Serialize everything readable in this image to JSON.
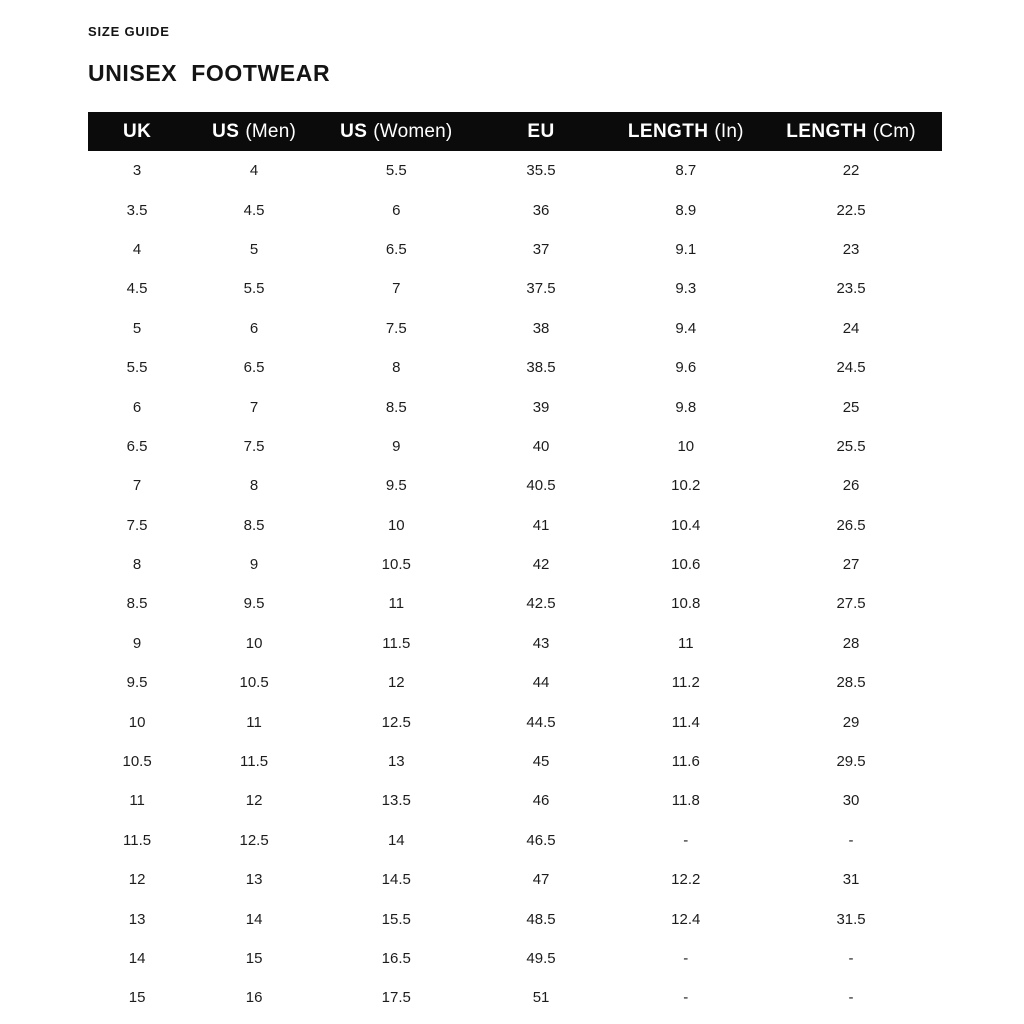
{
  "page": {
    "eyebrow": "SIZE GUIDE",
    "title": "UNISEX  FOOTWEAR"
  },
  "colors": {
    "background": "#ffffff",
    "header_bg": "#0b0b0b",
    "header_text": "#ffffff",
    "body_text": "#1d1d1d"
  },
  "chart_data": {
    "type": "table",
    "title": "UNISEX  FOOTWEAR",
    "subtitle": "SIZE GUIDE",
    "columns": [
      {
        "bold": "UK",
        "rest": ""
      },
      {
        "bold": "US",
        "rest": "(Men)"
      },
      {
        "bold": "US",
        "rest": "(Women)"
      },
      {
        "bold": "EU",
        "rest": ""
      },
      {
        "bold": "LENGTH",
        "rest": "(In)"
      },
      {
        "bold": "LENGTH",
        "rest": "(Cm)"
      }
    ],
    "rows": [
      [
        "3",
        "4",
        "5.5",
        "35.5",
        "8.7",
        "22"
      ],
      [
        "3.5",
        "4.5",
        "6",
        "36",
        "8.9",
        "22.5"
      ],
      [
        "4",
        "5",
        "6.5",
        "37",
        "9.1",
        "23"
      ],
      [
        "4.5",
        "5.5",
        "7",
        "37.5",
        "9.3",
        "23.5"
      ],
      [
        "5",
        "6",
        "7.5",
        "38",
        "9.4",
        "24"
      ],
      [
        "5.5",
        "6.5",
        "8",
        "38.5",
        "9.6",
        "24.5"
      ],
      [
        "6",
        "7",
        "8.5",
        "39",
        "9.8",
        "25"
      ],
      [
        "6.5",
        "7.5",
        "9",
        "40",
        "10",
        "25.5"
      ],
      [
        "7",
        "8",
        "9.5",
        "40.5",
        "10.2",
        "26"
      ],
      [
        "7.5",
        "8.5",
        "10",
        "41",
        "10.4",
        "26.5"
      ],
      [
        "8",
        "9",
        "10.5",
        "42",
        "10.6",
        "27"
      ],
      [
        "8.5",
        "9.5",
        "11",
        "42.5",
        "10.8",
        "27.5"
      ],
      [
        "9",
        "10",
        "11.5",
        "43",
        "11",
        "28"
      ],
      [
        "9.5",
        "10.5",
        "12",
        "44",
        "11.2",
        "28.5"
      ],
      [
        "10",
        "11",
        "12.5",
        "44.5",
        "11.4",
        "29"
      ],
      [
        "10.5",
        "11.5",
        "13",
        "45",
        "11.6",
        "29.5"
      ],
      [
        "11",
        "12",
        "13.5",
        "46",
        "11.8",
        "30"
      ],
      [
        "11.5",
        "12.5",
        "14",
        "46.5",
        "-",
        "-"
      ],
      [
        "12",
        "13",
        "14.5",
        "47",
        "12.2",
        "31"
      ],
      [
        "13",
        "14",
        "15.5",
        "48.5",
        "12.4",
        "31.5"
      ],
      [
        "14",
        "15",
        "16.5",
        "49.5",
        "-",
        "-"
      ],
      [
        "15",
        "16",
        "17.5",
        "51",
        "-",
        "-"
      ]
    ]
  }
}
